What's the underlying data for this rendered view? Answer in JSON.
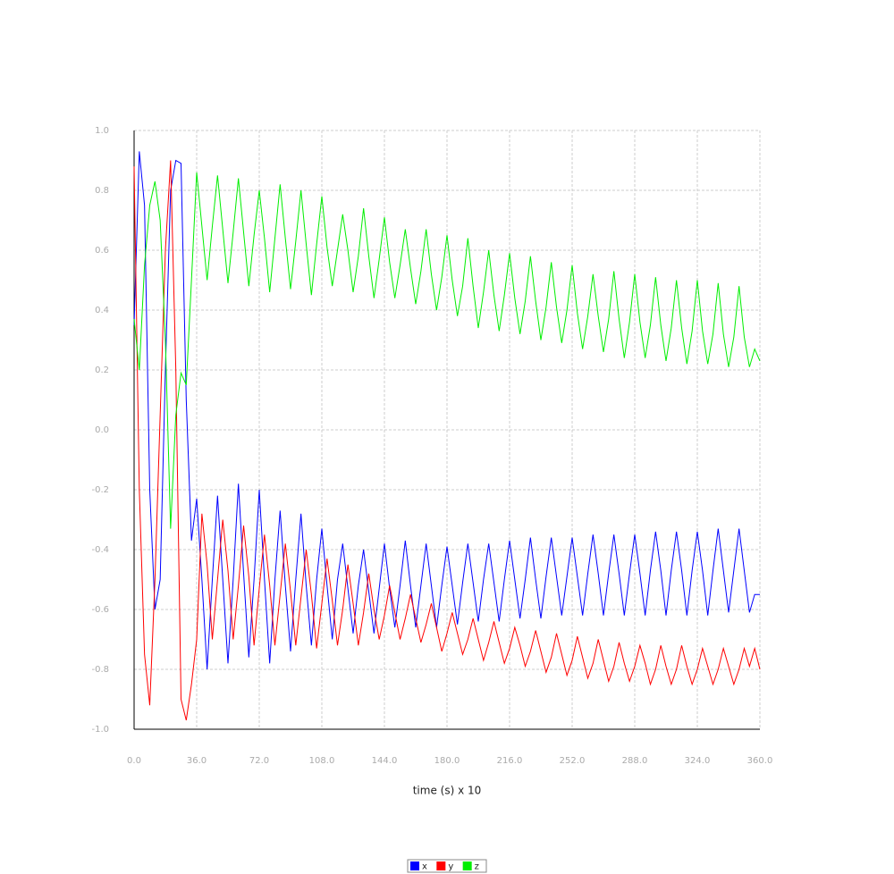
{
  "chart_data": {
    "type": "line",
    "xlabel": "time (s) x 10",
    "x": [
      0,
      3,
      6,
      9,
      12,
      15,
      18,
      21,
      24,
      27,
      30,
      33,
      36,
      39,
      42,
      45,
      48,
      51,
      54,
      57,
      60,
      63,
      66,
      69,
      72,
      75,
      78,
      81,
      84,
      87,
      90,
      93,
      96,
      99,
      102,
      105,
      108,
      111,
      114,
      117,
      120,
      123,
      126,
      129,
      132,
      135,
      138,
      141,
      144,
      147,
      150,
      153,
      156,
      159,
      162,
      165,
      168,
      171,
      174,
      177,
      180,
      183,
      186,
      189,
      192,
      195,
      198,
      201,
      204,
      207,
      210,
      213,
      216,
      219,
      222,
      225,
      228,
      231,
      234,
      237,
      240,
      243,
      246,
      249,
      252,
      255,
      258,
      261,
      264,
      267,
      270,
      273,
      276,
      279,
      282,
      285,
      288,
      291,
      294,
      297,
      300,
      303,
      306,
      309,
      312,
      315,
      318,
      321,
      324,
      327,
      330,
      333,
      336,
      339,
      342,
      345,
      348,
      351,
      354,
      357,
      360
    ],
    "series": [
      {
        "name": "x",
        "color": "#0000ff",
        "values": [
          0.35,
          0.93,
          0.75,
          -0.2,
          -0.6,
          -0.5,
          0.2,
          0.8,
          0.9,
          0.89,
          0.1,
          -0.37,
          -0.23,
          -0.5,
          -0.8,
          -0.5,
          -0.22,
          -0.5,
          -0.78,
          -0.5,
          -0.18,
          -0.48,
          -0.76,
          -0.5,
          -0.2,
          -0.5,
          -0.78,
          -0.5,
          -0.27,
          -0.52,
          -0.74,
          -0.5,
          -0.28,
          -0.52,
          -0.72,
          -0.5,
          -0.33,
          -0.52,
          -0.7,
          -0.5,
          -0.38,
          -0.53,
          -0.68,
          -0.52,
          -0.4,
          -0.54,
          -0.68,
          -0.53,
          -0.38,
          -0.53,
          -0.66,
          -0.52,
          -0.37,
          -0.52,
          -0.66,
          -0.52,
          -0.38,
          -0.52,
          -0.66,
          -0.52,
          -0.39,
          -0.52,
          -0.65,
          -0.51,
          -0.38,
          -0.51,
          -0.64,
          -0.5,
          -0.38,
          -0.51,
          -0.64,
          -0.5,
          -0.37,
          -0.5,
          -0.63,
          -0.5,
          -0.36,
          -0.5,
          -0.63,
          -0.49,
          -0.36,
          -0.49,
          -0.62,
          -0.49,
          -0.36,
          -0.49,
          -0.62,
          -0.48,
          -0.35,
          -0.48,
          -0.62,
          -0.48,
          -0.35,
          -0.48,
          -0.62,
          -0.48,
          -0.35,
          -0.48,
          -0.62,
          -0.47,
          -0.34,
          -0.47,
          -0.62,
          -0.47,
          -0.34,
          -0.47,
          -0.62,
          -0.47,
          -0.34,
          -0.47,
          -0.62,
          -0.47,
          -0.33,
          -0.47,
          -0.61,
          -0.47,
          -0.33,
          -0.47,
          -0.61,
          -0.55,
          -0.55
        ]
      },
      {
        "name": "y",
        "color": "#ff0000",
        "values": [
          0.88,
          -0.2,
          -0.75,
          -0.92,
          -0.5,
          0.05,
          0.6,
          0.9,
          0.2,
          -0.9,
          -0.97,
          -0.85,
          -0.7,
          -0.28,
          -0.45,
          -0.7,
          -0.5,
          -0.3,
          -0.47,
          -0.7,
          -0.52,
          -0.32,
          -0.49,
          -0.72,
          -0.53,
          -0.35,
          -0.52,
          -0.72,
          -0.55,
          -0.38,
          -0.54,
          -0.72,
          -0.56,
          -0.4,
          -0.55,
          -0.73,
          -0.58,
          -0.43,
          -0.57,
          -0.72,
          -0.6,
          -0.45,
          -0.58,
          -0.72,
          -0.61,
          -0.48,
          -0.6,
          -0.7,
          -0.62,
          -0.52,
          -0.61,
          -0.7,
          -0.63,
          -0.55,
          -0.63,
          -0.71,
          -0.65,
          -0.58,
          -0.66,
          -0.74,
          -0.68,
          -0.61,
          -0.68,
          -0.75,
          -0.7,
          -0.63,
          -0.7,
          -0.77,
          -0.71,
          -0.64,
          -0.71,
          -0.78,
          -0.73,
          -0.66,
          -0.72,
          -0.79,
          -0.74,
          -0.67,
          -0.74,
          -0.81,
          -0.76,
          -0.68,
          -0.75,
          -0.82,
          -0.77,
          -0.69,
          -0.76,
          -0.83,
          -0.78,
          -0.7,
          -0.77,
          -0.84,
          -0.79,
          -0.71,
          -0.78,
          -0.84,
          -0.79,
          -0.72,
          -0.78,
          -0.85,
          -0.8,
          -0.72,
          -0.79,
          -0.85,
          -0.8,
          -0.72,
          -0.79,
          -0.85,
          -0.8,
          -0.73,
          -0.79,
          -0.85,
          -0.8,
          -0.73,
          -0.79,
          -0.85,
          -0.8,
          -0.73,
          -0.79,
          -0.73,
          -0.8
        ]
      },
      {
        "name": "z",
        "color": "#00ee00",
        "values": [
          0.37,
          0.2,
          0.55,
          0.75,
          0.83,
          0.7,
          0.3,
          -0.33,
          0.05,
          0.19,
          0.15,
          0.5,
          0.86,
          0.68,
          0.5,
          0.68,
          0.85,
          0.67,
          0.49,
          0.66,
          0.84,
          0.66,
          0.48,
          0.65,
          0.8,
          0.64,
          0.46,
          0.64,
          0.82,
          0.64,
          0.47,
          0.63,
          0.8,
          0.62,
          0.45,
          0.62,
          0.78,
          0.61,
          0.48,
          0.6,
          0.72,
          0.6,
          0.46,
          0.58,
          0.74,
          0.58,
          0.44,
          0.57,
          0.71,
          0.56,
          0.44,
          0.55,
          0.67,
          0.54,
          0.42,
          0.53,
          0.67,
          0.52,
          0.4,
          0.51,
          0.65,
          0.5,
          0.38,
          0.48,
          0.64,
          0.48,
          0.34,
          0.46,
          0.6,
          0.45,
          0.33,
          0.45,
          0.59,
          0.44,
          0.32,
          0.43,
          0.58,
          0.43,
          0.3,
          0.41,
          0.56,
          0.41,
          0.29,
          0.4,
          0.55,
          0.39,
          0.27,
          0.38,
          0.52,
          0.38,
          0.26,
          0.37,
          0.53,
          0.37,
          0.24,
          0.36,
          0.52,
          0.36,
          0.24,
          0.35,
          0.51,
          0.35,
          0.23,
          0.34,
          0.5,
          0.34,
          0.22,
          0.33,
          0.5,
          0.33,
          0.22,
          0.32,
          0.49,
          0.32,
          0.21,
          0.31,
          0.48,
          0.31,
          0.21,
          0.27,
          0.23
        ]
      }
    ],
    "xlim": [
      0,
      360
    ],
    "xticks": [
      {
        "value": 0,
        "label": "0.0"
      },
      {
        "value": 36,
        "label": "36.0"
      },
      {
        "value": 72,
        "label": "72.0"
      },
      {
        "value": 108,
        "label": "108.0"
      },
      {
        "value": 144,
        "label": "144.0"
      },
      {
        "value": 180,
        "label": "180.0"
      },
      {
        "value": 216,
        "label": "216.0"
      },
      {
        "value": 252,
        "label": "252.0"
      },
      {
        "value": 288,
        "label": "288.0"
      },
      {
        "value": 324,
        "label": "324.0"
      },
      {
        "value": 360,
        "label": "360.0"
      }
    ],
    "ylim": [
      -1,
      1
    ],
    "yticks": [
      {
        "value": -1,
        "label": "-1.0"
      },
      {
        "value": -0.8,
        "label": "-0.8"
      },
      {
        "value": -0.6,
        "label": "-0.6"
      },
      {
        "value": -0.4,
        "label": "-0.4"
      },
      {
        "value": -0.2,
        "label": "-0.2"
      },
      {
        "value": 0,
        "label": "0.0"
      },
      {
        "value": 0.2,
        "label": "0.2"
      },
      {
        "value": 0.4,
        "label": "0.4"
      },
      {
        "value": 0.6,
        "label": "0.6"
      },
      {
        "value": 0.8,
        "label": "0.8"
      },
      {
        "value": 1,
        "label": "1.0"
      }
    ],
    "grid": true,
    "legend": "bottom"
  }
}
